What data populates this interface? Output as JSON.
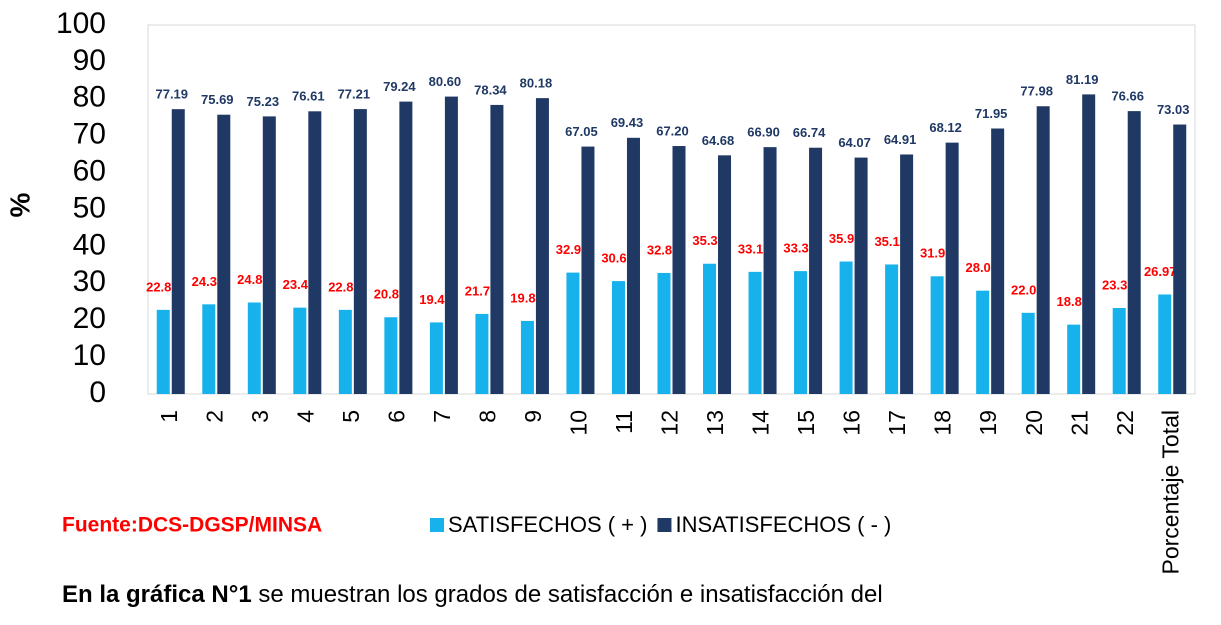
{
  "chart_data": {
    "type": "bar",
    "y_label": "%",
    "categories": [
      "1",
      "2",
      "3",
      "4",
      "5",
      "6",
      "7",
      "8",
      "9",
      "10",
      "11",
      "12",
      "13",
      "14",
      "15",
      "16",
      "17",
      "18",
      "19",
      "20",
      "21",
      "22",
      "Porcentaje Total"
    ],
    "series": [
      {
        "name": "SATISFECHOS ( + )",
        "color": "#17b1ec",
        "values": [
          22.8,
          24.3,
          24.8,
          23.4,
          22.8,
          20.8,
          19.4,
          21.7,
          19.8,
          32.9,
          30.6,
          32.8,
          35.3,
          33.1,
          33.3,
          35.9,
          35.1,
          31.9,
          28.0,
          22.0,
          18.8,
          23.3,
          26.97
        ],
        "value_labels": [
          "22.8",
          "24.3",
          "24.8",
          "23.4",
          "22.8",
          "20.8",
          "19.4",
          "21.7",
          "19.8",
          "32.9",
          "30.6",
          "32.8",
          "35.3",
          "33.1",
          "33.3",
          "35.9",
          "35.1",
          "31.9",
          "28.0",
          "22.0",
          "18.8",
          "23.3",
          "26.97"
        ],
        "label_color": "#ff0000"
      },
      {
        "name": "INSATISFECHOS ( - )",
        "color": "#1f3864",
        "values": [
          77.19,
          75.69,
          75.23,
          76.61,
          77.21,
          79.24,
          80.6,
          78.34,
          80.18,
          67.05,
          69.43,
          67.2,
          64.68,
          66.9,
          66.74,
          64.07,
          64.91,
          68.12,
          71.95,
          77.98,
          81.19,
          76.66,
          73.03
        ],
        "value_labels": [
          "77.19",
          "75.69",
          "75.23",
          "76.61",
          "77.21",
          "79.24",
          "80.60",
          "78.34",
          "80.18",
          "67.05",
          "69.43",
          "67.20",
          "64.68",
          "66.90",
          "66.74",
          "64.07",
          "64.91",
          "68.12",
          "71.95",
          "77.98",
          "81.19",
          "76.66",
          "73.03"
        ],
        "label_color": "#1f3864"
      }
    ],
    "ylim": [
      0,
      100
    ],
    "yticks": [
      0,
      10,
      20,
      30,
      40,
      50,
      60,
      70,
      80,
      90,
      100
    ],
    "grid": false
  },
  "source": "Fuente:DCS-DGSP/MINSA",
  "paragraph": {
    "bold": "En la gráfica N°1",
    "text": " se muestran los grados de satisfacción e insatisfacción del"
  }
}
